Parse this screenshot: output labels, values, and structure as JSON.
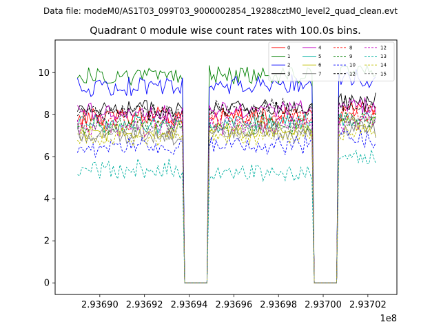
{
  "figure": {
    "suptitle": "Data file: modeM0/AS1T03_099T03_9000002854_19288cztM0_level2_quad_clean.evt"
  },
  "chart_data": {
    "type": "line",
    "title": "Quadrant 0 module wise count rates with 100.0s bins.",
    "xlabel": "",
    "ylabel": "",
    "x_offset_label": "1e8",
    "xlim": [
      293688000.0,
      293703300.0
    ],
    "ylim": [
      -0.55,
      11.55
    ],
    "xticks": [
      293690000.0,
      293692000.0,
      293694000.0,
      293696000.0,
      293698000.0,
      293700000.0,
      293702000.0
    ],
    "xtick_labels": [
      "2.93690",
      "2.93692",
      "2.93694",
      "2.93696",
      "2.93698",
      "2.93700",
      "2.93702"
    ],
    "yticks": [
      0,
      2,
      4,
      6,
      8,
      10
    ],
    "ytick_labels": [
      "0",
      "2",
      "4",
      "6",
      "8",
      "10"
    ],
    "grid": false,
    "legend_location": "top-right",
    "legend_columns": 4,
    "time_segments": [
      {
        "start": 293689000.0,
        "end": 293693700.0,
        "active": true
      },
      {
        "start": 293693800.0,
        "end": 293694800.0,
        "active": false
      },
      {
        "start": 293694900.0,
        "end": 293699500.0,
        "active": true
      },
      {
        "start": 293699600.0,
        "end": 293700600.0,
        "active": false
      },
      {
        "start": 293700700.0,
        "end": 293702350.0,
        "active": true
      }
    ],
    "bin_width_s": 100,
    "series": [
      {
        "name": "0",
        "color": "#ff0000",
        "dashed": false,
        "levels": [
          7.9,
          7.9,
          8.2
        ]
      },
      {
        "name": "1",
        "color": "#008000",
        "dashed": false,
        "levels": [
          9.8,
          9.9,
          10.1
        ]
      },
      {
        "name": "2",
        "color": "#0000ff",
        "dashed": false,
        "levels": [
          9.3,
          9.4,
          9.7
        ]
      },
      {
        "name": "3",
        "color": "#000000",
        "dashed": false,
        "levels": [
          8.3,
          8.3,
          8.6
        ]
      },
      {
        "name": "4",
        "color": "#c000c0",
        "dashed": false,
        "levels": [
          8.1,
          8.2,
          8.4
        ]
      },
      {
        "name": "5",
        "color": "#00b0a0",
        "dashed": false,
        "levels": [
          7.6,
          7.6,
          7.8
        ]
      },
      {
        "name": "6",
        "color": "#bfbf00",
        "dashed": false,
        "levels": [
          7.2,
          7.3,
          7.5
        ]
      },
      {
        "name": "7",
        "color": "#7f7f7f",
        "dashed": false,
        "levels": [
          7.0,
          7.1,
          7.3
        ]
      },
      {
        "name": "8",
        "color": "#ff0000",
        "dashed": true,
        "levels": [
          7.7,
          7.8,
          8.0
        ]
      },
      {
        "name": "9",
        "color": "#008000",
        "dashed": true,
        "levels": [
          7.5,
          7.5,
          7.8
        ]
      },
      {
        "name": "10",
        "color": "#0000ff",
        "dashed": true,
        "levels": [
          6.5,
          6.6,
          6.8
        ]
      },
      {
        "name": "12",
        "color": "#000000",
        "dashed": true,
        "levels": [
          8.1,
          8.3,
          8.5
        ]
      },
      {
        "name": "12",
        "color": "#c000c0",
        "dashed": true,
        "levels": [
          7.4,
          7.5,
          7.7
        ]
      },
      {
        "name": "13",
        "color": "#00b0a0",
        "dashed": true,
        "levels": [
          5.4,
          5.3,
          5.9
        ]
      },
      {
        "name": "14",
        "color": "#bfbf00",
        "dashed": true,
        "levels": [
          6.9,
          7.0,
          7.2
        ]
      },
      {
        "name": "15",
        "color": "#7f7f7f",
        "dashed": true,
        "levels": [
          7.2,
          7.3,
          7.6
        ]
      }
    ]
  }
}
